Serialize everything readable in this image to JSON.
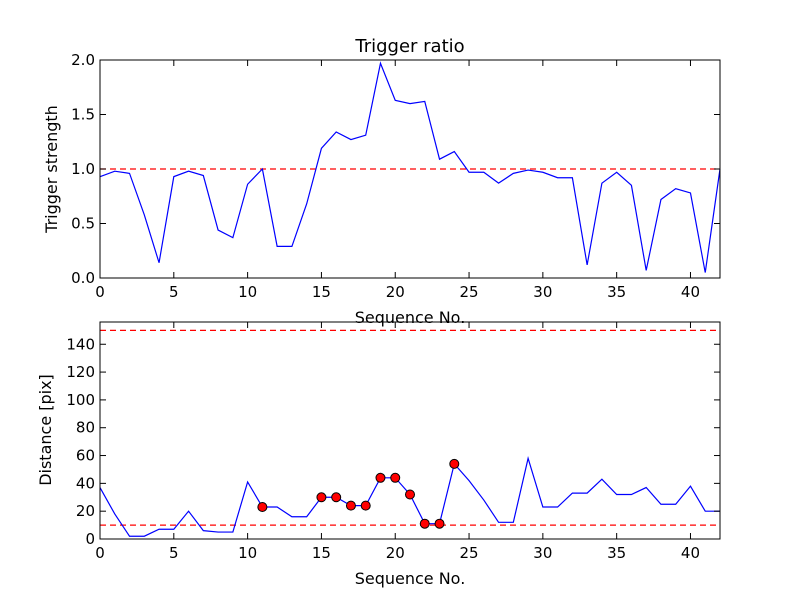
{
  "chart_data": [
    {
      "type": "line",
      "title": "Trigger ratio",
      "xlabel": "Sequence No.",
      "ylabel": "Trigger strength",
      "xlim": [
        0,
        42
      ],
      "ylim": [
        0,
        2.0
      ],
      "xticks": [
        0,
        5,
        10,
        15,
        20,
        25,
        30,
        35,
        40
      ],
      "yticks": [
        0.0,
        0.5,
        1.0,
        1.5,
        2.0
      ],
      "ytick_labels": [
        "0.0",
        "0.5",
        "1.0",
        "1.5",
        "2.0"
      ],
      "grid": false,
      "colors": {
        "series": "#0000ff",
        "threshold": "#ff0000"
      },
      "thresholds": [
        1.0
      ],
      "series": [
        {
          "x": [
            0,
            1,
            2,
            3,
            4,
            5,
            6,
            7,
            8,
            9,
            10,
            11,
            12,
            13,
            14,
            15,
            16,
            17,
            18,
            19,
            20,
            21,
            22,
            23,
            24,
            25,
            26,
            27,
            28,
            29,
            30,
            31,
            32,
            33,
            34,
            35,
            36,
            37,
            38,
            39,
            40,
            41,
            42
          ],
          "values": [
            0.93,
            0.98,
            0.96,
            0.58,
            0.14,
            0.93,
            0.98,
            0.94,
            0.44,
            0.37,
            0.86,
            1.0,
            0.29,
            0.29,
            0.68,
            1.19,
            1.34,
            1.27,
            1.31,
            1.97,
            1.63,
            1.6,
            1.62,
            1.09,
            1.16,
            0.97,
            0.97,
            0.87,
            0.96,
            0.99,
            0.97,
            0.92,
            0.92,
            0.12,
            0.87,
            0.97,
            0.85,
            0.07,
            0.72,
            0.82,
            0.78,
            0.05,
            1.0
          ]
        }
      ]
    },
    {
      "type": "line",
      "title": "",
      "xlabel": "Sequence No.",
      "ylabel": "Distance [pix]",
      "xlim": [
        0,
        42
      ],
      "ylim": [
        0,
        156
      ],
      "xticks": [
        0,
        5,
        10,
        15,
        20,
        25,
        30,
        35,
        40
      ],
      "yticks": [
        0,
        20,
        40,
        60,
        80,
        100,
        120,
        140
      ],
      "grid": false,
      "colors": {
        "series": "#0000ff",
        "threshold": "#ff0000",
        "marker": "#ff0000"
      },
      "thresholds": [
        10,
        150
      ],
      "series": [
        {
          "x": [
            0,
            1,
            2,
            3,
            4,
            5,
            6,
            7,
            8,
            9,
            10,
            11,
            12,
            13,
            14,
            15,
            16,
            17,
            18,
            19,
            20,
            21,
            22,
            23,
            24,
            25,
            26,
            27,
            28,
            29,
            30,
            31,
            32,
            33,
            34,
            35,
            36,
            37,
            38,
            39,
            40,
            41,
            42
          ],
          "values": [
            37,
            18,
            2,
            2,
            7,
            7,
            20,
            6,
            5,
            5,
            41,
            23,
            23,
            16,
            16,
            30,
            30,
            24,
            24,
            44,
            44,
            32,
            11,
            11,
            54,
            42,
            28,
            12,
            12,
            58,
            23,
            23,
            33,
            33,
            43,
            32,
            32,
            37,
            25,
            25,
            38,
            20,
            20
          ]
        }
      ],
      "markers": {
        "x": [
          11,
          15,
          16,
          17,
          18,
          19,
          20,
          21,
          22,
          23,
          24
        ],
        "y": [
          23,
          30,
          30,
          24,
          24,
          44,
          44,
          32,
          11,
          11,
          54
        ]
      }
    }
  ]
}
